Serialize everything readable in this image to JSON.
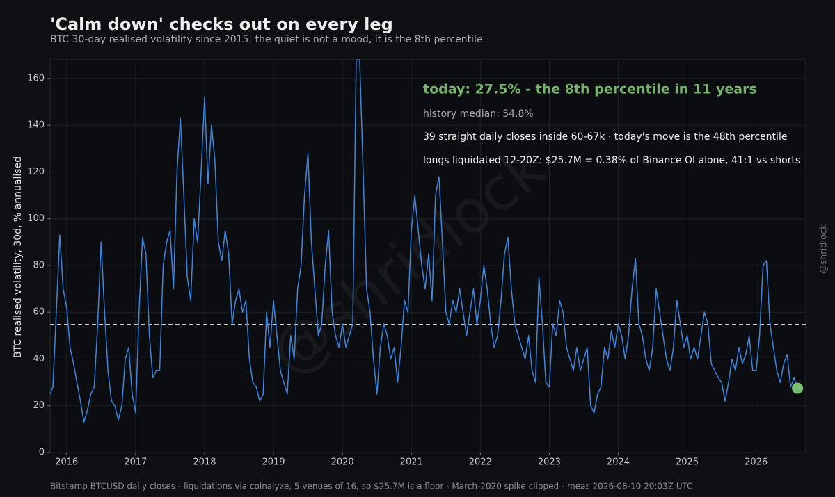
{
  "chart_data": {
    "type": "line",
    "title": "'Calm down' checks out on every leg",
    "subtitle": "BTC 30-day realised volatility since 2015: the quiet is not a mood, it is the 8th percentile",
    "y_label": "BTC realised volatility, 30d, % annualised",
    "footer": "Bitstamp BTCUSD daily closes - liquidations via coinalyze, 5 venues of 16, so $25.7M is a floor - March-2020 spike clipped - meas 2026-08-10 20:03Z UTC",
    "watermark": "@shridlock",
    "side_label": "@shridlock",
    "annotations": [
      "today: 27.5% - the 8th percentile in 11 years",
      "history median: 54.8%",
      "39 straight daily closes inside 60-67k  ·  today's move is the 48th percentile",
      "longs liquidated 12-20Z: $25.7M = 0.38% of Binance OI alone, 41:1 vs shorts"
    ],
    "median": 54.8,
    "xlim": [
      2015.76,
      2026.72
    ],
    "ylim": [
      0,
      168
    ],
    "xticks": [
      2016,
      2017,
      2018,
      2019,
      2020,
      2021,
      2022,
      2023,
      2024,
      2025,
      2026
    ],
    "yticks": [
      0,
      20,
      40,
      60,
      80,
      100,
      120,
      140,
      160
    ],
    "grid": true,
    "x": [
      2015.76,
      2015.8,
      2015.85,
      2015.9,
      2015.95,
      2016.0,
      2016.05,
      2016.1,
      2016.15,
      2016.2,
      2016.25,
      2016.3,
      2016.35,
      2016.4,
      2016.45,
      2016.5,
      2016.55,
      2016.6,
      2016.65,
      2016.7,
      2016.75,
      2016.8,
      2016.85,
      2016.9,
      2016.95,
      2017.0,
      2017.05,
      2017.1,
      2017.15,
      2017.2,
      2017.25,
      2017.3,
      2017.35,
      2017.4,
      2017.45,
      2017.5,
      2017.55,
      2017.6,
      2017.65,
      2017.7,
      2017.75,
      2017.8,
      2017.85,
      2017.9,
      2017.95,
      2018.0,
      2018.05,
      2018.1,
      2018.15,
      2018.2,
      2018.25,
      2018.3,
      2018.35,
      2018.4,
      2018.45,
      2018.5,
      2018.55,
      2018.6,
      2018.65,
      2018.7,
      2018.75,
      2018.8,
      2018.85,
      2018.9,
      2018.95,
      2019.0,
      2019.05,
      2019.1,
      2019.15,
      2019.2,
      2019.25,
      2019.3,
      2019.35,
      2019.4,
      2019.45,
      2019.5,
      2019.55,
      2019.6,
      2019.65,
      2019.7,
      2019.75,
      2019.8,
      2019.85,
      2019.9,
      2019.95,
      2020.0,
      2020.05,
      2020.1,
      2020.15,
      2020.2,
      2020.25,
      2020.3,
      2020.35,
      2020.4,
      2020.45,
      2020.5,
      2020.55,
      2020.6,
      2020.65,
      2020.7,
      2020.75,
      2020.8,
      2020.85,
      2020.9,
      2020.95,
      2021.0,
      2021.05,
      2021.1,
      2021.15,
      2021.2,
      2021.25,
      2021.3,
      2021.35,
      2021.4,
      2021.45,
      2021.5,
      2021.55,
      2021.6,
      2021.65,
      2021.7,
      2021.75,
      2021.8,
      2021.85,
      2021.9,
      2021.95,
      2022.0,
      2022.05,
      2022.1,
      2022.15,
      2022.2,
      2022.25,
      2022.3,
      2022.35,
      2022.4,
      2022.45,
      2022.5,
      2022.55,
      2022.6,
      2022.65,
      2022.7,
      2022.75,
      2022.8,
      2022.85,
      2022.9,
      2022.95,
      2023.0,
      2023.05,
      2023.1,
      2023.15,
      2023.2,
      2023.25,
      2023.3,
      2023.35,
      2023.4,
      2023.45,
      2023.5,
      2023.55,
      2023.6,
      2023.65,
      2023.7,
      2023.75,
      2023.8,
      2023.85,
      2023.9,
      2023.95,
      2024.0,
      2024.05,
      2024.1,
      2024.15,
      2024.2,
      2024.25,
      2024.3,
      2024.35,
      2024.4,
      2024.45,
      2024.5,
      2024.55,
      2024.6,
      2024.65,
      2024.7,
      2024.75,
      2024.8,
      2024.85,
      2024.9,
      2024.95,
      2025.0,
      2025.05,
      2025.1,
      2025.15,
      2025.2,
      2025.25,
      2025.3,
      2025.35,
      2025.4,
      2025.45,
      2025.5,
      2025.55,
      2025.6,
      2025.65,
      2025.7,
      2025.75,
      2025.8,
      2025.85,
      2025.9,
      2025.95,
      2026.0,
      2026.05,
      2026.1,
      2026.15,
      2026.2,
      2026.25,
      2026.3,
      2026.35,
      2026.4,
      2026.45,
      2026.5,
      2026.55,
      2026.6
    ],
    "series": [
      {
        "name": "BTC 30d realised volatility",
        "color": "#3f86e0",
        "values": [
          25,
          28,
          60,
          93,
          70,
          62,
          45,
          38,
          30,
          22,
          13,
          18,
          25,
          28,
          55,
          90,
          60,
          35,
          22,
          20,
          14,
          20,
          40,
          45,
          25,
          17,
          60,
          92,
          85,
          50,
          32,
          35,
          35,
          80,
          90,
          95,
          70,
          120,
          143,
          110,
          75,
          65,
          100,
          90,
          120,
          152,
          115,
          140,
          125,
          90,
          82,
          95,
          85,
          55,
          65,
          70,
          60,
          65,
          40,
          30,
          28,
          22,
          25,
          60,
          45,
          65,
          50,
          35,
          30,
          25,
          50,
          40,
          70,
          80,
          110,
          128,
          90,
          70,
          50,
          55,
          80,
          95,
          60,
          50,
          45,
          55,
          45,
          50,
          55,
          168,
          168,
          120,
          70,
          60,
          40,
          25,
          45,
          55,
          50,
          40,
          45,
          30,
          45,
          65,
          60,
          95,
          110,
          95,
          80,
          70,
          85,
          65,
          110,
          118,
          90,
          60,
          55,
          65,
          60,
          70,
          60,
          50,
          60,
          70,
          55,
          65,
          80,
          70,
          55,
          45,
          50,
          65,
          85,
          92,
          70,
          55,
          50,
          45,
          40,
          50,
          35,
          30,
          75,
          55,
          30,
          28,
          55,
          50,
          65,
          60,
          45,
          40,
          35,
          45,
          35,
          40,
          45,
          20,
          17,
          25,
          28,
          45,
          40,
          52,
          45,
          55,
          50,
          40,
          50,
          70,
          83,
          55,
          50,
          40,
          35,
          45,
          70,
          60,
          50,
          40,
          35,
          45,
          65,
          55,
          45,
          50,
          40,
          45,
          40,
          50,
          60,
          55,
          38,
          35,
          32,
          30,
          22,
          30,
          40,
          35,
          45,
          38,
          42,
          50,
          35,
          35,
          50,
          80,
          82,
          55,
          45,
          35,
          30,
          38,
          42,
          28,
          32,
          27.5
        ]
      }
    ]
  }
}
